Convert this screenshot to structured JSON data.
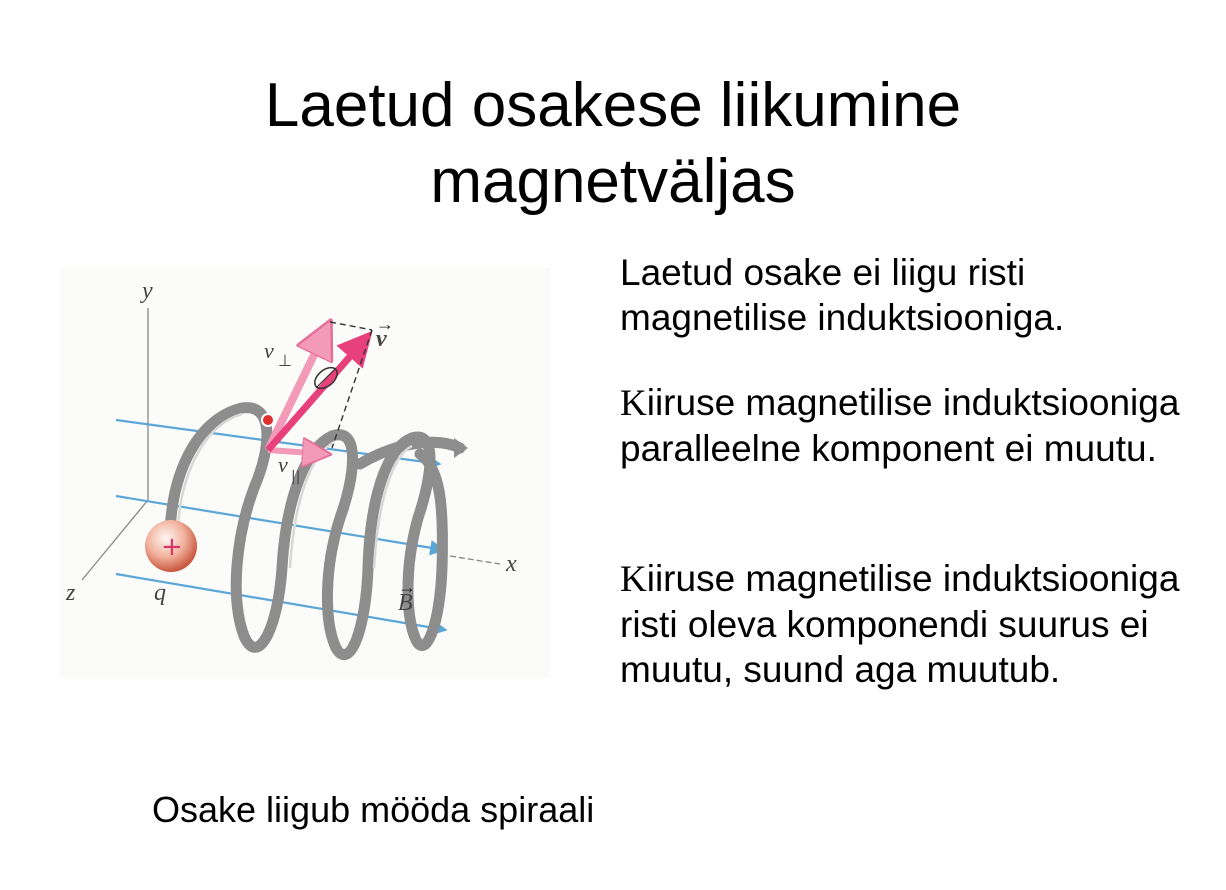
{
  "title": {
    "line1": "Laetud osakese liikumine",
    "line2": "magnetväljas"
  },
  "paragraphs": [
    "Laetud osake ei liigu risti magnetilise induktsiooniga.",
    "Kiiruse magnetilise induktsiooniga paralleelne komponent ei muutu.",
    "Kiiruse magnetilise induktsiooniga risti oleva komponendi suurus ei muutu, suund aga muutub."
  ],
  "caption": "Osake liigub mööda spiraali",
  "figure": {
    "axis_labels": {
      "x": "x",
      "y": "y",
      "z": "z"
    },
    "charge_label": "q",
    "charge_sign": "+",
    "velocity_label": "v",
    "v_perp_label": "v",
    "v_perp_sub": "⊥",
    "v_par_label": "v",
    "v_par_sub": "||",
    "field_label": "B",
    "colors": {
      "field_lines": "#5aa6d6",
      "helix": "#8a8a8a",
      "velocity": "#e8407a",
      "components": "#f29ab8"
    }
  }
}
